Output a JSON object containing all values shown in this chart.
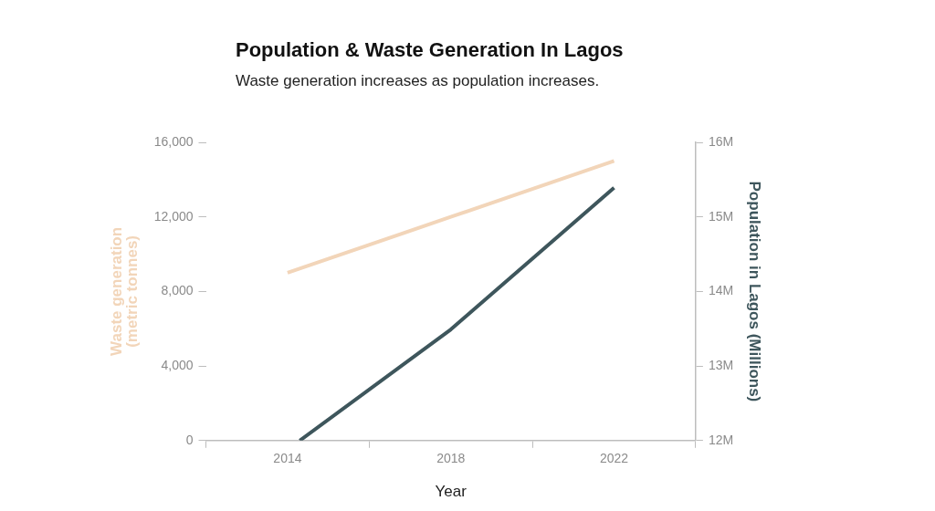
{
  "chart_data": {
    "type": "line",
    "title": "Population & Waste Generation In Lagos",
    "subtitle": "Waste generation increases as population increases.",
    "xlabel": "Year",
    "ylabel": "Waste generation (metric tonnes)",
    "y2label": "Population in Lagos (Millions)",
    "x": [
      2014,
      2018,
      2022
    ],
    "xlim": [
      2012,
      2024
    ],
    "xticks": [
      {
        "value": 2012,
        "label": null
      },
      2014,
      {
        "value": 2016,
        "label": null
      },
      2018,
      {
        "value": 2020,
        "label": null
      },
      2022,
      {
        "value": 2024,
        "label": null
      }
    ],
    "series": [
      {
        "color": "#f2d5b9",
        "values": [
          9000,
          12000,
          15000
        ]
      },
      {
        "color": "#3e565c",
        "x": [
          2014.3,
          2018,
          2022
        ],
        "values": [
          12,
          13.49,
          15.39
        ],
        "axis": "y2"
      }
    ],
    "ylim": [
      0,
      16000
    ],
    "yticks": [
      {
        "value": 0,
        "label": "0"
      },
      {
        "value": 4000,
        "label": "4,000"
      },
      {
        "value": 8000,
        "label": "8,000"
      },
      {
        "value": 12000,
        "label": "12,000"
      },
      {
        "value": 16000,
        "label": "16,000"
      }
    ],
    "y2lim": [
      12,
      16
    ],
    "y2ticks": [
      {
        "value": 12,
        "label": "12M"
      },
      {
        "value": 13,
        "label": "13M"
      },
      {
        "value": 14,
        "label": "14M"
      },
      {
        "value": 15,
        "label": "15M"
      },
      {
        "value": 16,
        "label": "16M"
      }
    ],
    "grid": false,
    "legend": false,
    "marker": "none",
    "line_style": "solid"
  }
}
